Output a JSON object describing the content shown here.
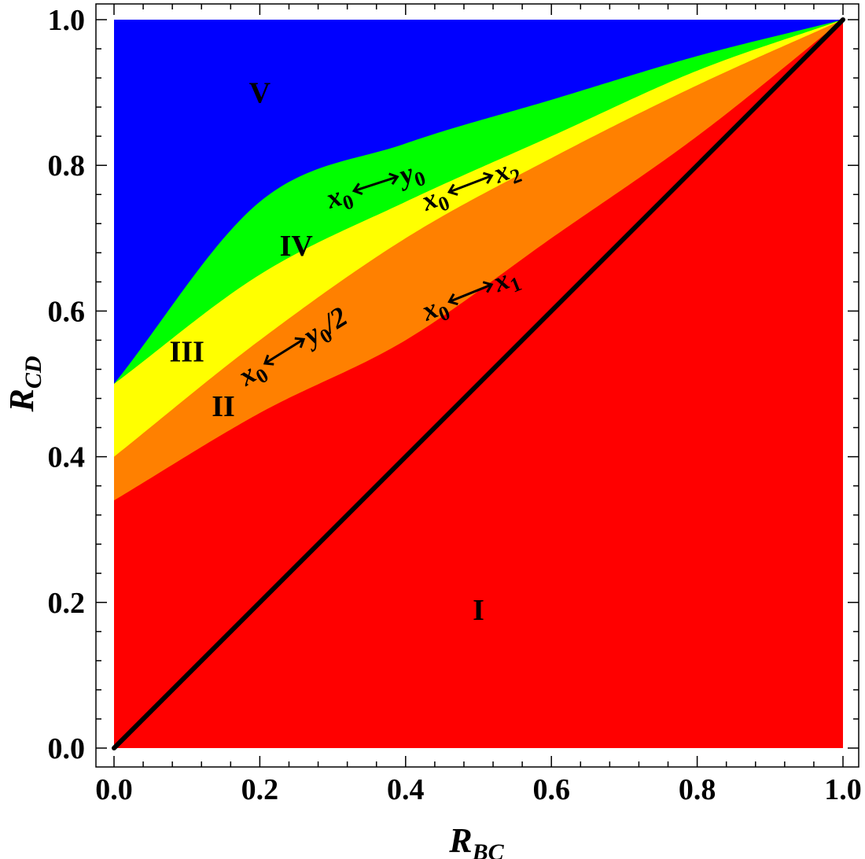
{
  "chart_data": {
    "type": "area",
    "xlabel": {
      "main": "R",
      "sub": "BC"
    },
    "ylabel": {
      "main": "R",
      "sub": "CD"
    },
    "xlim": [
      0,
      1
    ],
    "ylim": [
      0,
      1
    ],
    "x_ticks": [
      "0.0",
      "0.2",
      "0.4",
      "0.6",
      "0.8",
      "1.0"
    ],
    "y_ticks": [
      "0.0",
      "0.2",
      "0.4",
      "0.6",
      "0.8",
      "1.0"
    ],
    "frame": "full box with minor ticks",
    "grid": false,
    "regions": [
      {
        "label": "I",
        "color": "#ff0000"
      },
      {
        "label": "II",
        "color": "#ff8000"
      },
      {
        "label": "III",
        "color": "#ffff00"
      },
      {
        "label": "IV",
        "color": "#00ff00"
      },
      {
        "label": "V",
        "color": "#0000ff"
      }
    ],
    "boundaries": [
      {
        "between": [
          "I",
          "II"
        ],
        "x": [
          0,
          0.2,
          0.4,
          0.6,
          0.8,
          1.0
        ],
        "y": [
          0.34,
          0.46,
          0.56,
          0.7,
          0.84,
          1.0
        ]
      },
      {
        "between": [
          "II",
          "III"
        ],
        "x": [
          0,
          0.2,
          0.4,
          0.6,
          0.8,
          1.0
        ],
        "y": [
          0.4,
          0.56,
          0.7,
          0.81,
          0.91,
          1.0
        ]
      },
      {
        "between": [
          "III",
          "IV"
        ],
        "x": [
          0,
          0.2,
          0.4,
          0.6,
          0.8,
          1.0
        ],
        "y": [
          0.5,
          0.65,
          0.75,
          0.84,
          0.93,
          1.0
        ]
      },
      {
        "between": [
          "IV",
          "V"
        ],
        "x": [
          0,
          0.2,
          0.4,
          0.6,
          0.8,
          1.0
        ],
        "y": [
          0.5,
          0.75,
          0.83,
          0.89,
          0.95,
          1.0
        ]
      }
    ],
    "diagonal_line": {
      "x": [
        0,
        1
      ],
      "y": [
        0,
        1
      ],
      "color": "#000000"
    },
    "region_label_positions": [
      {
        "text": "I",
        "x": 0.5,
        "y": 0.19
      },
      {
        "text": "II",
        "x": 0.15,
        "y": 0.47
      },
      {
        "text": "III",
        "x": 0.1,
        "y": 0.545
      },
      {
        "text": "IV",
        "x": 0.25,
        "y": 0.69
      },
      {
        "text": "V",
        "x": 0.2,
        "y": 0.9
      }
    ],
    "annotations": [
      {
        "from": "x",
        "from_sub": "0",
        "to": "y",
        "to_sub": "0",
        "suffix": "",
        "x": 0.36,
        "y": 0.775,
        "angle": -18
      },
      {
        "from": "x",
        "from_sub": "0",
        "to": "x",
        "to_sub": "2",
        "suffix": "",
        "x": 0.49,
        "y": 0.775,
        "angle": -21
      },
      {
        "from": "x",
        "from_sub": "0",
        "to": "x",
        "to_sub": "1",
        "suffix": "",
        "x": 0.49,
        "y": 0.625,
        "angle": -22
      },
      {
        "from": "x",
        "from_sub": "0",
        "to": "y",
        "to_sub": "0",
        "suffix": "/2",
        "x": 0.25,
        "y": 0.555,
        "angle": -32
      }
    ]
  }
}
